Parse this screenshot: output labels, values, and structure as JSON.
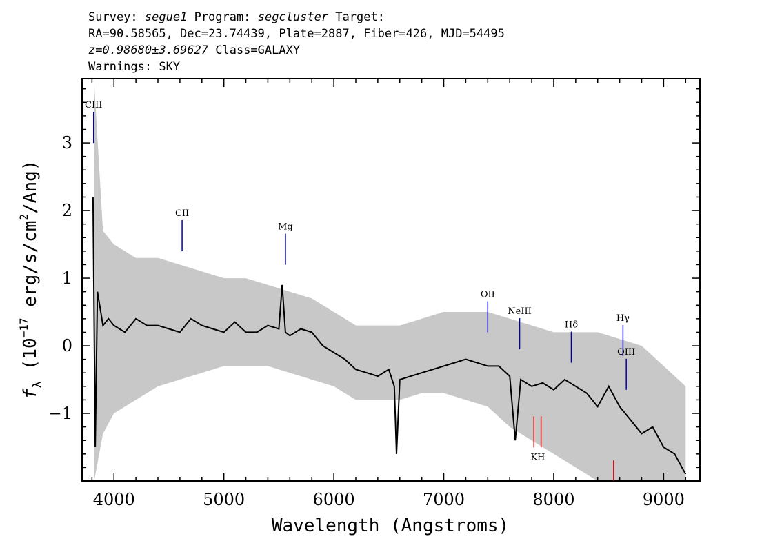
{
  "header": {
    "line1": {
      "survey_label": "Survey:",
      "survey": "segue1",
      "program_label": "Program:",
      "program": "segcluster",
      "target_label": "Target:"
    },
    "line2": "RA=90.58565, Dec=23.74439, Plate=2887, Fiber=426, MJD=54495",
    "line3": {
      "z": "z=0.98680±3.69627",
      "class": "Class=GALAXY"
    },
    "line4": "Warnings: SKY"
  },
  "chart_data": {
    "type": "line",
    "title": "",
    "xlabel": "Wavelength (Angstroms)",
    "ylabel_parts": {
      "f": "f",
      "sub": "λ",
      "a": "(10",
      "exp1": "−17",
      "b": "erg/s/cm",
      "exp2": "2",
      "c": "/Ang)"
    },
    "xlim": [
      3710,
      9330
    ],
    "ylim": [
      -2.0,
      3.95
    ],
    "xticks": [
      4000,
      5000,
      6000,
      7000,
      8000,
      9000
    ],
    "xtick_labels": [
      "4000",
      "5000",
      "6000",
      "7000",
      "8000",
      "9000"
    ],
    "yticks": [
      -1,
      0,
      1,
      2,
      3
    ],
    "ytick_labels": [
      "−1",
      "0",
      "1",
      "2",
      "3"
    ],
    "grid": false,
    "series": [
      {
        "role": "error-envelope",
        "color": "#c8c8c8",
        "x": [
          3820,
          3900,
          4000,
          4200,
          4400,
          4600,
          4800,
          5000,
          5200,
          5400,
          5600,
          5800,
          6000,
          6200,
          6400,
          6600,
          6800,
          7000,
          7200,
          7400,
          7600,
          7800,
          8000,
          8200,
          8400,
          8600,
          8800,
          9000,
          9200
        ],
        "upper": [
          3.9,
          1.7,
          1.5,
          1.3,
          1.3,
          1.2,
          1.1,
          1.0,
          1.0,
          0.9,
          0.8,
          0.7,
          0.5,
          0.3,
          0.3,
          0.3,
          0.4,
          0.5,
          0.5,
          0.5,
          0.4,
          0.3,
          0.2,
          0.2,
          0.2,
          0.1,
          0.0,
          -0.3,
          -0.6
        ],
        "lower": [
          -2.0,
          -1.3,
          -1.0,
          -0.8,
          -0.6,
          -0.5,
          -0.4,
          -0.3,
          -0.3,
          -0.3,
          -0.4,
          -0.5,
          -0.6,
          -0.8,
          -0.8,
          -0.8,
          -0.7,
          -0.7,
          -0.8,
          -0.9,
          -1.2,
          -1.4,
          -1.6,
          -1.8,
          -2.0,
          -2.0,
          -2.0,
          -2.0,
          -2.0
        ]
      },
      {
        "role": "flux",
        "color": "#000000",
        "x": [
          3810,
          3830,
          3850,
          3870,
          3900,
          3950,
          4000,
          4100,
          4200,
          4300,
          4400,
          4500,
          4600,
          4700,
          4800,
          4900,
          5000,
          5100,
          5200,
          5300,
          5400,
          5500,
          5530,
          5560,
          5600,
          5700,
          5800,
          5900,
          6000,
          6100,
          6200,
          6300,
          6400,
          6500,
          6550,
          6570,
          6600,
          6700,
          6800,
          6900,
          7000,
          7100,
          7200,
          7300,
          7400,
          7500,
          7600,
          7650,
          7700,
          7800,
          7900,
          8000,
          8100,
          8200,
          8300,
          8400,
          8500,
          8600,
          8700,
          8800,
          8900,
          9000,
          9100,
          9200
        ],
        "y": [
          2.2,
          -1.5,
          0.8,
          0.6,
          0.3,
          0.4,
          0.3,
          0.2,
          0.4,
          0.3,
          0.3,
          0.25,
          0.2,
          0.4,
          0.3,
          0.25,
          0.2,
          0.35,
          0.2,
          0.2,
          0.3,
          0.25,
          0.9,
          0.2,
          0.15,
          0.25,
          0.2,
          0.0,
          -0.1,
          -0.2,
          -0.35,
          -0.4,
          -0.45,
          -0.35,
          -0.6,
          -1.6,
          -0.5,
          -0.45,
          -0.4,
          -0.35,
          -0.3,
          -0.25,
          -0.2,
          -0.25,
          -0.3,
          -0.3,
          -0.45,
          -1.4,
          -0.5,
          -0.6,
          -0.55,
          -0.65,
          -0.5,
          -0.6,
          -0.7,
          -0.9,
          -0.6,
          -0.9,
          -1.1,
          -1.3,
          -1.2,
          -1.5,
          -1.6,
          -1.9
        ]
      }
    ],
    "emission_lines": [
      {
        "label": "CIII",
        "x": 3815,
        "y": 3.05,
        "color": "#0000aa"
      },
      {
        "label": "CII",
        "x": 4620,
        "y": 1.45,
        "color": "#0000aa"
      },
      {
        "label": "Mg",
        "x": 5560,
        "y": 1.25,
        "color": "#0000aa"
      },
      {
        "label": "OII",
        "x": 7400,
        "y": 0.25,
        "color": "#0000aa"
      },
      {
        "label": "NeIII",
        "x": 7690,
        "y": 0.0,
        "color": "#0000aa"
      },
      {
        "label": "Hδ",
        "x": 8160,
        "y": -0.2,
        "color": "#0000aa"
      },
      {
        "label": "Hγ",
        "x": 8630,
        "y": -0.1,
        "color": "#0000aa"
      },
      {
        "label": "OIII",
        "x": 8660,
        "y": -0.6,
        "color": "#0000aa"
      }
    ],
    "absorption_lines": [
      {
        "label": "K",
        "x": 7820,
        "y": -1.3,
        "color": "#cc0000"
      },
      {
        "label": "H",
        "x": 7885,
        "y": -1.3,
        "color": "#cc0000"
      },
      {
        "label": "",
        "x": 8545,
        "y": -1.95,
        "color": "#cc0000"
      }
    ]
  }
}
